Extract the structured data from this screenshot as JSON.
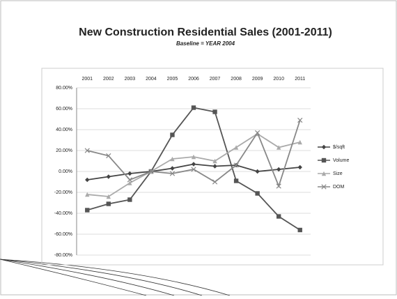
{
  "chart_data": {
    "type": "line",
    "title": "New Construction Residential Sales (2001-2011)",
    "subtitle": "Baseline = YEAR 2004",
    "categories": [
      "2001",
      "2002",
      "2003",
      "2004",
      "2005",
      "2006",
      "2007",
      "2008",
      "2009",
      "2010",
      "2011"
    ],
    "ylim": [
      -80,
      80
    ],
    "yticks": [
      {
        "value": 80,
        "label": "80.00%"
      },
      {
        "value": 60,
        "label": "60.00%"
      },
      {
        "value": 40,
        "label": "40.00%"
      },
      {
        "value": 20,
        "label": "20.00%"
      },
      {
        "value": 0,
        "label": "0.00%"
      },
      {
        "value": -20,
        "label": "-20.00%"
      },
      {
        "value": -40,
        "label": "-40.00%"
      },
      {
        "value": -60,
        "label": "-60.00%"
      },
      {
        "value": -80,
        "label": "-80.00%"
      }
    ],
    "grid": true,
    "legend": "right",
    "series": [
      {
        "name": "$/sqft",
        "color": "#444444",
        "marker": "diamond",
        "values": [
          -8,
          -5,
          -2,
          0,
          3,
          7,
          5,
          6,
          0,
          2,
          4
        ]
      },
      {
        "name": "Volume",
        "color": "#555555",
        "marker": "square",
        "values": [
          -37,
          -31,
          -27,
          0,
          35,
          61,
          57,
          -9,
          -21,
          -43,
          -56
        ]
      },
      {
        "name": "Size",
        "color": "#aaaaaa",
        "marker": "triangle",
        "values": [
          -22,
          -24,
          -11,
          0,
          12,
          14,
          10,
          23,
          36,
          23,
          28
        ]
      },
      {
        "name": "DOM",
        "color": "#888888",
        "marker": "x",
        "values": [
          20,
          15,
          -8,
          0,
          -2,
          2,
          -10,
          6,
          37,
          -14,
          49
        ]
      }
    ]
  }
}
